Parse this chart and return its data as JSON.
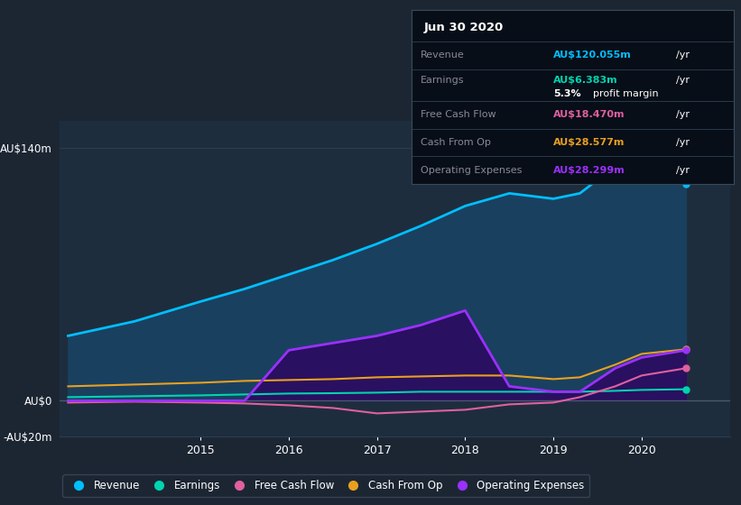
{
  "bg_color": "#1c2633",
  "plot_bg_color": "#1e2d3d",
  "grid_color": "#2a3d52",
  "ylim": [
    -20,
    155
  ],
  "yticks": [
    -20,
    0,
    140
  ],
  "ytick_labels": [
    "-AU$20m",
    "AU$0",
    "AU$140m"
  ],
  "years": [
    2013.5,
    2014.25,
    2015.0,
    2015.5,
    2016.0,
    2016.5,
    2017.0,
    2017.5,
    2018.0,
    2018.5,
    2019.0,
    2019.3,
    2019.7,
    2020.0,
    2020.5
  ],
  "revenue": [
    36,
    44,
    55,
    62,
    70,
    78,
    87,
    97,
    108,
    115,
    112,
    115,
    130,
    135,
    120
  ],
  "earnings": [
    2,
    2.5,
    3,
    3.5,
    4,
    4.2,
    4.5,
    5,
    5,
    5,
    5,
    5,
    5.5,
    6,
    6.383
  ],
  "free_cash_flow": [
    -1,
    -0.5,
    -1,
    -1.5,
    -2.5,
    -4,
    -7,
    -6,
    -5,
    -2,
    -1,
    2,
    8,
    14,
    18
  ],
  "cash_from_op": [
    8,
    9,
    10,
    11,
    11.5,
    12,
    13,
    13.5,
    14,
    14,
    12,
    13,
    20,
    26,
    28.5
  ],
  "op_expenses": [
    0,
    0,
    0,
    0,
    28,
    32,
    36,
    42,
    50,
    8,
    5,
    5,
    18,
    24,
    28
  ],
  "revenue_color": "#00bfff",
  "earnings_color": "#00d4b0",
  "free_cash_flow_color": "#e060a0",
  "cash_from_op_color": "#e8a020",
  "op_expenses_color": "#9b30ff",
  "revenue_fill_color": "#1a4060",
  "op_expenses_fill_color": "#2a1060",
  "info_box": {
    "date": "Jun 30 2020",
    "revenue_val": "AU$120.055m",
    "earnings_val": "AU$6.383m",
    "profit_margin": "5.3%",
    "free_cash_flow_val": "AU$18.470m",
    "cash_from_op_val": "AU$28.577m",
    "op_expenses_val": "AU$28.299m"
  },
  "legend_entries": [
    "Revenue",
    "Earnings",
    "Free Cash Flow",
    "Cash From Op",
    "Operating Expenses"
  ],
  "legend_colors": [
    "#00bfff",
    "#00d4b0",
    "#e060a0",
    "#e8a020",
    "#9b30ff"
  ]
}
